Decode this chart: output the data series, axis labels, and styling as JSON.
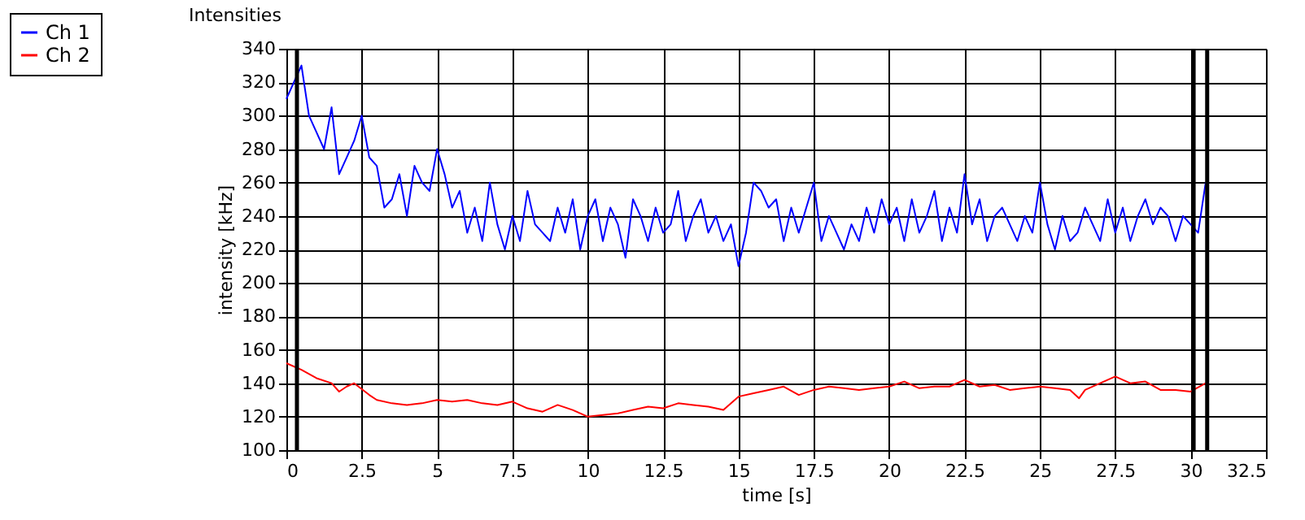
{
  "chart_data": {
    "type": "line",
    "title": "Intensities",
    "xlabel": "time [s]",
    "ylabel": "intensity [kHz]",
    "xlim": [
      0,
      32.5
    ],
    "xticks": [
      0,
      2.5,
      5,
      7.5,
      10,
      12.5,
      15,
      17.5,
      20,
      22.5,
      25,
      27.5,
      30,
      32.5
    ],
    "ylim": [
      100,
      340
    ],
    "yticks": [
      100,
      120,
      140,
      160,
      180,
      200,
      220,
      240,
      260,
      280,
      300,
      320,
      340
    ],
    "grid": true,
    "legend": "top left",
    "line_style": "solid",
    "marker": "none",
    "series": [
      {
        "name": "Ch 1",
        "color": "#0000ff",
        "x": [
          0,
          0.25,
          0.5,
          0.75,
          1,
          1.25,
          1.5,
          1.75,
          2,
          2.25,
          2.5,
          2.75,
          3,
          3.25,
          3.5,
          3.75,
          4,
          4.25,
          4.5,
          4.75,
          5,
          5.25,
          5.5,
          5.75,
          6,
          6.25,
          6.5,
          6.75,
          7,
          7.25,
          7.5,
          7.75,
          8,
          8.25,
          8.5,
          8.75,
          9,
          9.25,
          9.5,
          9.75,
          10,
          10.25,
          10.5,
          10.75,
          11,
          11.25,
          11.5,
          11.75,
          12,
          12.25,
          12.5,
          12.75,
          13,
          13.25,
          13.5,
          13.75,
          14,
          14.25,
          14.5,
          14.75,
          15,
          15.25,
          15.5,
          15.75,
          16,
          16.25,
          16.5,
          16.75,
          17,
          17.25,
          17.5,
          17.75,
          18,
          18.25,
          18.5,
          18.75,
          19,
          19.25,
          19.5,
          19.75,
          20,
          20.25,
          20.5,
          20.75,
          21,
          21.25,
          21.5,
          21.75,
          22,
          22.25,
          22.5,
          22.75,
          23,
          23.25,
          23.5,
          23.75,
          24,
          24.25,
          24.5,
          24.75,
          25,
          25.25,
          25.5,
          25.75,
          26,
          26.25,
          26.5,
          26.75,
          27,
          27.25,
          27.5,
          27.75,
          28,
          28.25,
          28.5,
          28.75,
          29,
          29.25,
          29.5,
          29.75,
          30,
          30.25,
          30.5
        ],
        "values": [
          310,
          320,
          330,
          300,
          290,
          280,
          305,
          265,
          275,
          285,
          300,
          275,
          270,
          245,
          250,
          265,
          240,
          270,
          260,
          255,
          280,
          265,
          245,
          255,
          230,
          245,
          225,
          260,
          235,
          220,
          240,
          225,
          255,
          235,
          230,
          225,
          245,
          230,
          250,
          220,
          240,
          250,
          225,
          245,
          235,
          215,
          250,
          240,
          225,
          245,
          230,
          235,
          255,
          225,
          240,
          250,
          230,
          240,
          225,
          235,
          210,
          230,
          260,
          255,
          245,
          250,
          225,
          245,
          230,
          245,
          260,
          225,
          240,
          230,
          220,
          235,
          225,
          245,
          230,
          250,
          235,
          245,
          225,
          250,
          230,
          240,
          255,
          225,
          245,
          230,
          265,
          235,
          250,
          225,
          240,
          245,
          235,
          225,
          240,
          230,
          260,
          235,
          220,
          240,
          225,
          230,
          245,
          235,
          225,
          250,
          230,
          245,
          225,
          240,
          250,
          235,
          245,
          240,
          225,
          240,
          235,
          230,
          260
        ]
      },
      {
        "name": "Ch 2",
        "color": "#ff0000",
        "x": [
          0,
          0.5,
          1,
          1.5,
          1.75,
          2,
          2.25,
          2.75,
          3,
          3.5,
          4,
          4.5,
          5,
          5.5,
          6,
          6.5,
          7,
          7.5,
          8,
          8.5,
          9,
          9.5,
          10,
          10.5,
          11,
          11.5,
          12,
          12.5,
          13,
          13.5,
          14,
          14.5,
          15,
          15.5,
          16,
          16.5,
          17,
          17.5,
          18,
          18.5,
          19,
          19.5,
          20,
          20.5,
          21,
          21.5,
          22,
          22.5,
          23,
          23.5,
          24,
          24.5,
          25,
          25.5,
          26,
          26.3,
          26.5,
          27,
          27.5,
          28,
          28.5,
          29,
          29.5,
          30,
          30.5
        ],
        "values": [
          152,
          148,
          143,
          140,
          135,
          138,
          140,
          133,
          130,
          128,
          127,
          128,
          130,
          129,
          130,
          128,
          127,
          129,
          125,
          123,
          127,
          124,
          120,
          121,
          122,
          124,
          126,
          125,
          128,
          127,
          126,
          124,
          132,
          134,
          136,
          138,
          133,
          136,
          138,
          137,
          136,
          137,
          138,
          141,
          137,
          138,
          138,
          142,
          138,
          139,
          136,
          137,
          138,
          137,
          136,
          131,
          136,
          140,
          144,
          140,
          141,
          136,
          136,
          135,
          140
        ]
      }
    ],
    "ref_lines": [
      {
        "axis": "x",
        "value": 0.35,
        "color": "#000000"
      },
      {
        "axis": "x",
        "value": 30.1,
        "color": "#000000"
      },
      {
        "axis": "x",
        "value": 30.55,
        "color": "#000000"
      }
    ]
  }
}
